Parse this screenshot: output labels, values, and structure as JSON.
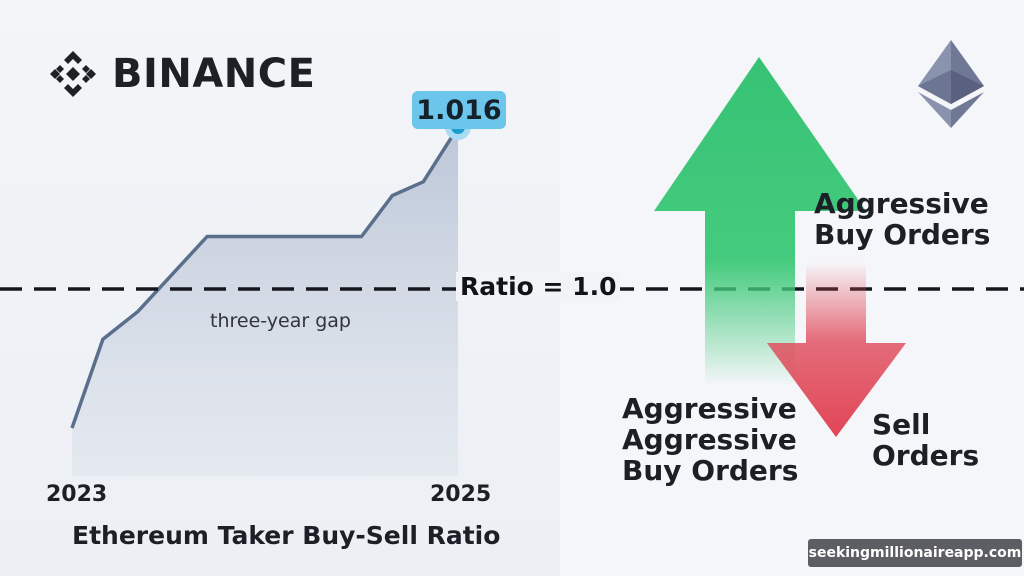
{
  "brand": {
    "name": "BINANCE"
  },
  "chart_data": {
    "type": "area",
    "title": "Ethereum Taker Buy-Sell Ratio",
    "x_tick_labels": [
      "2023",
      "2025"
    ],
    "series": [
      {
        "x": [
          0,
          0.08,
          0.17,
          0.35,
          0.75,
          0.83,
          0.91,
          1.0
        ],
        "y": [
          0.972,
          0.985,
          0.989,
          1.0,
          1.0,
          1.006,
          1.008,
          1.016
        ]
      }
    ],
    "final_value_label": "1.016",
    "reference_line": {
      "value": 1.0,
      "label": "Ratio = 1.0"
    },
    "annotation": "three-year gap",
    "ylim": [
      0.965,
      1.022
    ],
    "grid": false
  },
  "diagram": {
    "buy_label_top": [
      "Aggressive",
      "Buy Orders"
    ],
    "buy_label_bottom": [
      "Aggressive",
      "Aggressive",
      "Buy Orders"
    ],
    "sell_label": [
      "Sell",
      "Orders"
    ],
    "buy_color": "#3ec878",
    "sell_color": "#e04a5a"
  },
  "watermark": "seekingmillionaireapp.com",
  "colors": {
    "line": "#5a6f8c",
    "area": "#c9d2e0",
    "marker": "#1e9bd0",
    "badge": "#6cc6ec"
  }
}
